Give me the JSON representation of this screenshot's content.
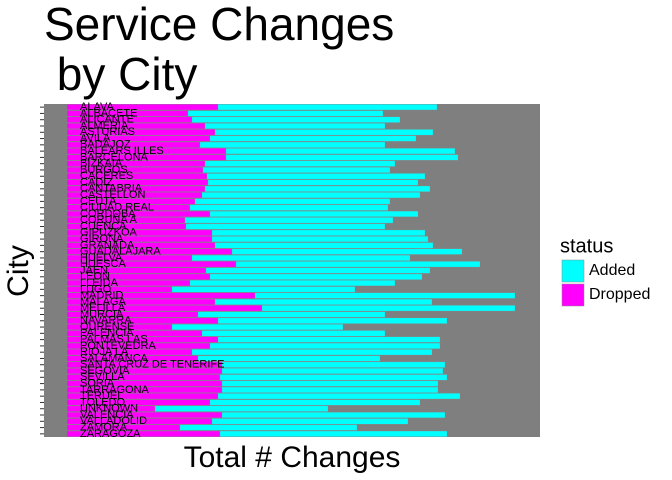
{
  "chart_data": {
    "type": "stacked-barh",
    "title": "Service Changes\n by City",
    "x_label": "Total # Changes",
    "y_label": "City",
    "legend_title": "status",
    "categories": [
      "ALAVA",
      "ALBACETE",
      "ALICANTE",
      "ALMERIA",
      "ASTURIAS",
      "AVILA",
      "BADAJOZ",
      "BALEARS ILLES",
      "BARCELONA",
      "BIZKAIA",
      "BURGOS",
      "CACERES",
      "CADIZ",
      "CANTABRIA",
      "CASTELLON",
      "CEUTA",
      "CIUDAD REAL",
      "CORDOBA",
      "CORUÑA A",
      "CUENCA",
      "GIPUZKOA",
      "GIRONA",
      "GRANADA",
      "GUADALAJARA",
      "HUELVA",
      "HUESCA",
      "JAEN",
      "LEON",
      "LLEIDA",
      "LUGO",
      "MADRID",
      "MALAGA",
      "MELILLA",
      "MURCIA",
      "NAVARRA",
      "OURENSE",
      "PALENCIA",
      "PALMAS LAS",
      "PONTEVEDRA",
      "RIOJA LA",
      "SALAMANCA",
      "SANTA CRUZ DE TENERIFE",
      "SEGOVIA",
      "SEVILLA",
      "SORIA",
      "TARRAGONA",
      "TERUEL",
      "TOLEDO",
      "UNKNOWN",
      "VALENCIA",
      "VALLADOLID",
      "ZAMORA",
      "ZARAGOZA"
    ],
    "series": [
      {
        "name": "Added",
        "color": "#00ffff",
        "values": [
          219,
          195,
          208,
          180,
          218,
          206,
          185,
          229,
          232,
          190,
          187,
          218,
          210,
          225,
          218,
          195,
          198,
          208,
          208,
          199,
          213,
          216,
          218,
          230,
          218,
          244,
          224,
          212,
          205,
          183,
          260,
          217,
          253,
          187,
          229,
          171,
          183,
          222,
          230,
          240,
          182,
          223,
          221,
          227,
          216,
          216,
          242,
          210,
          173,
          223,
          196,
          177,
          227
        ]
      },
      {
        "name": "Dropped",
        "color": "#ff00ff",
        "values": [
          151,
          121,
          125,
          138,
          148,
          143,
          133,
          159,
          159,
          138,
          136,
          140,
          141,
          138,
          135,
          128,
          123,
          143,
          118,
          119,
          145,
          145,
          148,
          165,
          125,
          169,
          139,
          143,
          123,
          105,
          188,
          148,
          195,
          131,
          151,
          105,
          135,
          151,
          143,
          125,
          131,
          155,
          155,
          153,
          155,
          155,
          151,
          143,
          88,
          155,
          145,
          113,
          153
        ]
      }
    ],
    "stack_order": [
      "Dropped",
      "Added"
    ],
    "xlim": [
      -23,
      473
    ],
    "background": "#7f7f7f"
  }
}
